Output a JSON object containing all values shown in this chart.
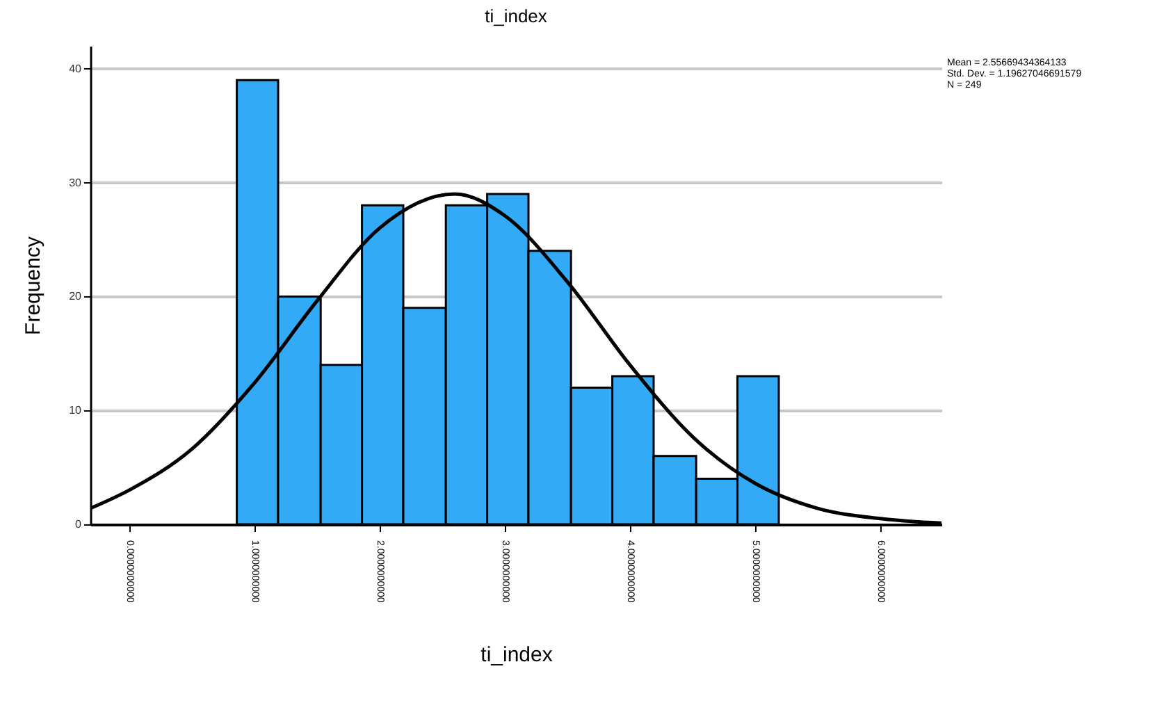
{
  "chart_data": {
    "type": "histogram",
    "title": "ti_index",
    "xlabel": "ti_index",
    "ylabel": "Frequency",
    "bins": [
      0.86,
      1.19,
      1.53,
      1.86,
      2.19,
      2.53,
      2.86,
      3.19,
      3.53,
      3.86,
      4.19,
      4.53,
      4.86,
      5.19
    ],
    "values": [
      39,
      20,
      14,
      28,
      19,
      28,
      29,
      24,
      12,
      13,
      6,
      4,
      13
    ],
    "color": "#33aaf5",
    "series": [
      {
        "type": "line",
        "color": "#000000",
        "x": [
          -0.31,
          0,
          0.5,
          1,
          1.5,
          2,
          2.6,
          3,
          3.5,
          4,
          4.5,
          5,
          5.5,
          6,
          6.49
        ],
        "values": [
          1.4,
          3,
          6.6,
          12.4,
          19.6,
          26,
          29,
          27.1,
          21.3,
          14,
          7.7,
          3.6,
          1.4,
          0.5,
          0.1
        ]
      }
    ],
    "xlim": [
      -0.31,
      6.49
    ],
    "xticks": [
      {
        "value": 0,
        "label": "0.0000000000"
      },
      {
        "value": 1,
        "label": "1.0000000000"
      },
      {
        "value": 2,
        "label": "2.0000000000"
      },
      {
        "value": 3,
        "label": "3.0000000000"
      },
      {
        "value": 4,
        "label": "4.0000000000"
      },
      {
        "value": 5,
        "label": "5.0000000000"
      },
      {
        "value": 6,
        "label": "6.0000000000"
      }
    ],
    "ylim": [
      0,
      42
    ],
    "yticks": [
      0,
      10,
      20,
      30,
      40
    ],
    "grid": "y",
    "annotations": [
      "Mean = 2.55669434364133",
      "Std. Dev. = 1.19627046691579",
      "N = 249"
    ]
  }
}
